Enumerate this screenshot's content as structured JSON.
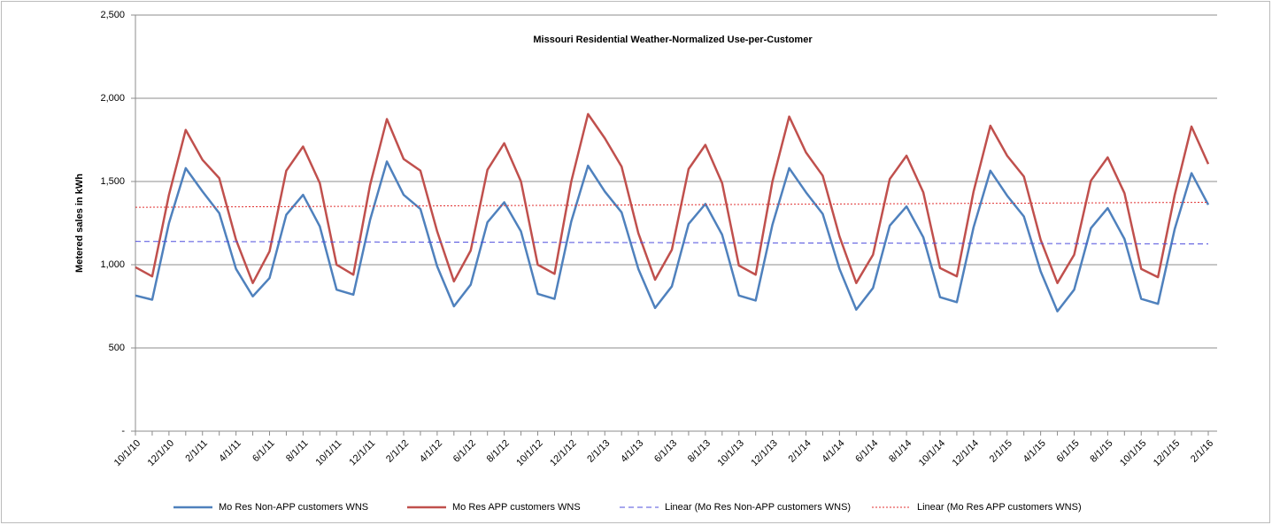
{
  "chart_data": {
    "type": "line",
    "title": "Missouri Residential  Weather-Normalized Use-per-Customer",
    "y_label": "Metered sales in kWh",
    "categories": [
      "10/1/10",
      null,
      "12/1/10",
      null,
      "2/1/11",
      null,
      "4/1/11",
      null,
      "6/1/11",
      null,
      "8/1/11",
      null,
      "10/1/11",
      null,
      "12/1/11",
      null,
      "2/1/12",
      null,
      "4/1/12",
      null,
      "6/1/12",
      null,
      "8/1/12",
      null,
      "10/1/12",
      null,
      "12/1/12",
      null,
      "2/1/13",
      null,
      "4/1/13",
      null,
      "6/1/13",
      null,
      "8/1/13",
      null,
      "10/1/13",
      null,
      "12/1/13",
      null,
      "2/1/14",
      null,
      "4/1/14",
      null,
      "6/1/14",
      null,
      "8/1/14",
      null,
      "10/1/14",
      null,
      "12/1/14",
      null,
      "2/1/15",
      null,
      "4/1/15",
      null,
      "6/1/15",
      null,
      "8/1/15",
      null,
      "10/1/15",
      null,
      "12/1/15",
      null,
      "2/1/16"
    ],
    "series": [
      {
        "name": "Mo Res Non-APP customers WNS",
        "color": "#4f81bd",
        "values": [
          815,
          790,
          1250,
          1580,
          1440,
          1310,
          975,
          810,
          920,
          1300,
          1420,
          1230,
          850,
          820,
          1270,
          1620,
          1420,
          1335,
          990,
          750,
          880,
          1255,
          1375,
          1200,
          825,
          795,
          1260,
          1595,
          1440,
          1315,
          975,
          740,
          870,
          1245,
          1365,
          1180,
          815,
          785,
          1240,
          1580,
          1435,
          1305,
          975,
          730,
          860,
          1235,
          1350,
          1165,
          805,
          775,
          1225,
          1565,
          1415,
          1290,
          960,
          720,
          850,
          1220,
          1340,
          1155,
          795,
          765,
          1215,
          1550,
          1360
        ]
      },
      {
        "name": "Mo Res APP customers WNS",
        "color": "#c0504d",
        "values": [
          985,
          930,
          1420,
          1810,
          1630,
          1520,
          1150,
          890,
          1080,
          1565,
          1710,
          1490,
          1000,
          940,
          1480,
          1875,
          1635,
          1565,
          1200,
          900,
          1085,
          1570,
          1730,
          1500,
          1000,
          945,
          1500,
          1905,
          1760,
          1590,
          1190,
          910,
          1090,
          1575,
          1720,
          1490,
          995,
          940,
          1500,
          1890,
          1675,
          1535,
          1170,
          890,
          1060,
          1515,
          1655,
          1435,
          980,
          930,
          1440,
          1835,
          1655,
          1530,
          1150,
          890,
          1060,
          1505,
          1645,
          1430,
          975,
          925,
          1420,
          1830,
          1605
        ]
      }
    ],
    "trendlines": [
      {
        "name": "Linear (Mo Res Non-APP customers WNS)",
        "color": "#4f4fdd",
        "dash": "6,4",
        "values": [
          1140,
          1125
        ]
      },
      {
        "name": "Linear (Mo Res APP customers WNS)",
        "color": "#e03030",
        "dash": "2,2",
        "values": [
          1345,
          1375
        ]
      }
    ],
    "ylim": [
      0,
      2500
    ],
    "yticks": [
      {
        "value": 0,
        "label": "-"
      },
      500,
      {
        "value": 1000,
        "label": "1,000"
      },
      {
        "value": 1500,
        "label": "1,500"
      },
      {
        "value": 2000,
        "label": "2,000"
      },
      {
        "value": 2500,
        "label": "2,500"
      }
    ],
    "grid": true,
    "legend": "bottom"
  }
}
